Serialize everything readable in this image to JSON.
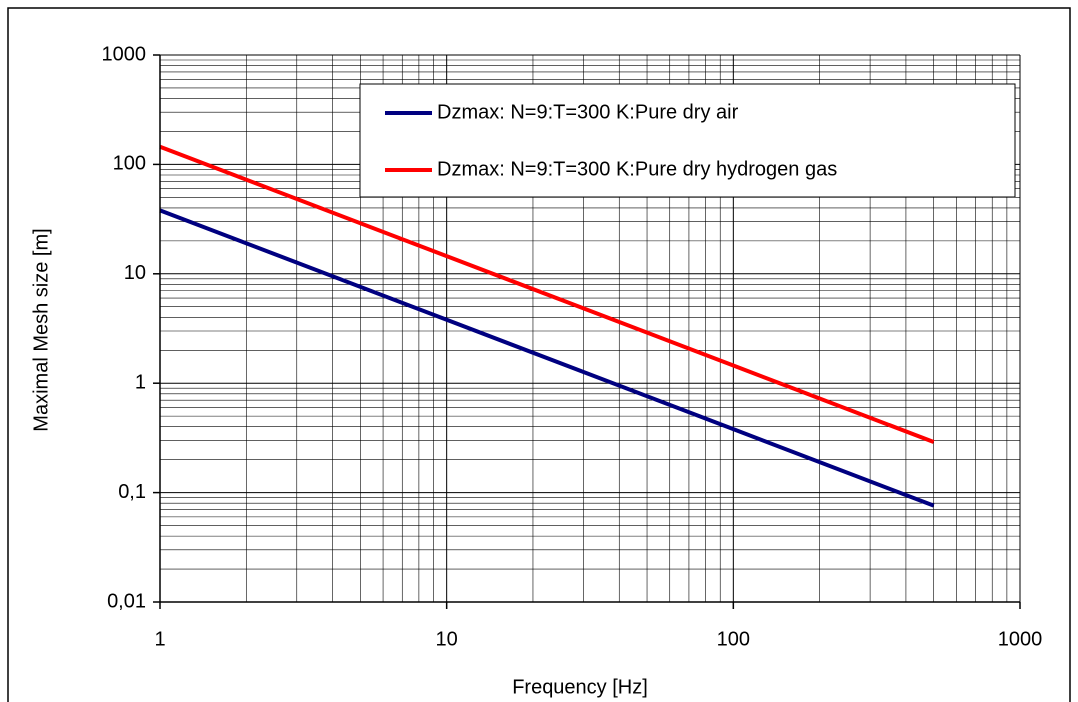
{
  "chart_data": {
    "type": "line",
    "x_label": "Frequency [Hz]",
    "y_label": "Maximal Mesh size [m]",
    "x": [
      1,
      10,
      100,
      500
    ],
    "series": [
      {
        "name": "Dzmax: N=9:T=300 K:Pure dry air",
        "color": "#000080",
        "values": [
          38,
          3.8,
          0.38,
          0.076
        ]
      },
      {
        "name": "Dzmax: N=9:T=300 K:Pure dry hydrogen gas",
        "color": "#ff0000",
        "values": [
          145,
          14.5,
          1.45,
          0.29
        ]
      }
    ],
    "xlim": [
      1,
      1000
    ],
    "ylim": [
      0.01,
      1000
    ],
    "xticks": [
      1,
      10,
      100,
      1000
    ],
    "yticks": [
      {
        "value": 0.01,
        "label": "0,01"
      },
      {
        "value": 0.1,
        "label": "0,1"
      },
      1,
      10,
      100,
      1000
    ],
    "xscale": "log",
    "yscale": "log",
    "grid": true,
    "minor_grid": true,
    "legend": "top-right"
  }
}
